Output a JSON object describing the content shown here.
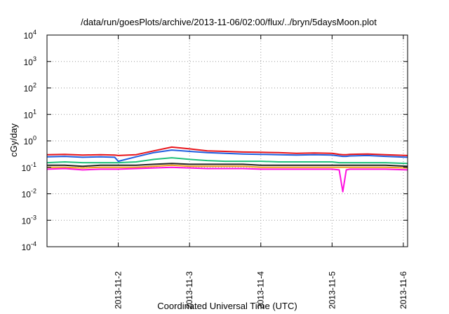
{
  "chart_data": {
    "type": "line",
    "title": "/data/run/goesPlots/archive/2013-11-06/02:00/flux/../bryn/5daysMoon.plot",
    "xlabel": "Coordinated Universal Time (UTC)",
    "ylabel": "cGy/day",
    "yscale": "log",
    "ylim": [
      0.0001,
      10000
    ],
    "xlim": [
      0,
      5.06
    ],
    "grid": true,
    "grid_style": "dotted",
    "legend": "none",
    "y_ticks": [
      {
        "base": "10",
        "exp": "-4"
      },
      {
        "base": "10",
        "exp": "-3"
      },
      {
        "base": "10",
        "exp": "-2"
      },
      {
        "base": "10",
        "exp": "-1"
      },
      {
        "base": "10",
        "exp": "0"
      },
      {
        "base": "10",
        "exp": "1"
      },
      {
        "base": "10",
        "exp": "2"
      },
      {
        "base": "10",
        "exp": "3"
      },
      {
        "base": "10",
        "exp": "4"
      }
    ],
    "x_ticks": [
      {
        "label": "2013-11-2",
        "x": 1
      },
      {
        "label": "2013-11-3",
        "x": 2
      },
      {
        "label": "2013-11-4",
        "x": 3
      },
      {
        "label": "2013-11-5",
        "x": 4
      },
      {
        "label": "2013-11-6",
        "x": 5
      }
    ],
    "x": [
      0,
      0.25,
      0.5,
      0.75,
      0.95,
      1.0,
      1.25,
      1.5,
      1.75,
      2.0,
      2.25,
      2.5,
      2.75,
      3.0,
      3.25,
      3.5,
      3.75,
      4.0,
      4.1,
      4.15,
      4.2,
      4.25,
      4.5,
      4.75,
      5.06
    ],
    "series": [
      {
        "color": "#e8141a",
        "values": [
          0.3,
          0.31,
          0.29,
          0.3,
          0.29,
          0.28,
          0.3,
          0.42,
          0.58,
          0.5,
          0.42,
          0.4,
          0.38,
          0.37,
          0.36,
          0.34,
          0.35,
          0.34,
          0.31,
          0.3,
          0.3,
          0.31,
          0.32,
          0.3,
          0.28
        ]
      },
      {
        "color": "#1f5fe0",
        "values": [
          0.25,
          0.26,
          0.24,
          0.25,
          0.24,
          0.17,
          0.25,
          0.36,
          0.45,
          0.4,
          0.36,
          0.34,
          0.32,
          0.31,
          0.3,
          0.29,
          0.3,
          0.29,
          0.27,
          0.26,
          0.26,
          0.27,
          0.28,
          0.26,
          0.24
        ]
      },
      {
        "color": "#1fc07a",
        "values": [
          0.15,
          0.16,
          0.15,
          0.15,
          0.15,
          0.15,
          0.16,
          0.2,
          0.23,
          0.2,
          0.18,
          0.17,
          0.17,
          0.17,
          0.16,
          0.16,
          0.16,
          0.16,
          0.15,
          0.15,
          0.15,
          0.15,
          0.15,
          0.15,
          0.14
        ]
      },
      {
        "color": "#222222",
        "values": [
          0.12,
          0.12,
          0.11,
          0.12,
          0.12,
          0.12,
          0.12,
          0.13,
          0.14,
          0.13,
          0.13,
          0.13,
          0.13,
          0.12,
          0.12,
          0.12,
          0.12,
          0.12,
          0.12,
          0.12,
          0.12,
          0.12,
          0.12,
          0.12,
          0.11
        ]
      },
      {
        "color": "#f0a020",
        "values": [
          0.1,
          0.1,
          0.095,
          0.1,
          0.1,
          0.1,
          0.1,
          0.11,
          0.12,
          0.11,
          0.11,
          0.11,
          0.11,
          0.1,
          0.1,
          0.1,
          0.1,
          0.1,
          0.1,
          0.1,
          0.1,
          0.1,
          0.1,
          0.1,
          0.095
        ]
      },
      {
        "color": "#ff10e0",
        "values": [
          0.085,
          0.09,
          0.08,
          0.085,
          0.085,
          0.085,
          0.09,
          0.095,
          0.1,
          0.095,
          0.09,
          0.09,
          0.09,
          0.085,
          0.085,
          0.085,
          0.085,
          0.085,
          0.08,
          0.012,
          0.08,
          0.085,
          0.085,
          0.085,
          0.08
        ]
      }
    ]
  }
}
